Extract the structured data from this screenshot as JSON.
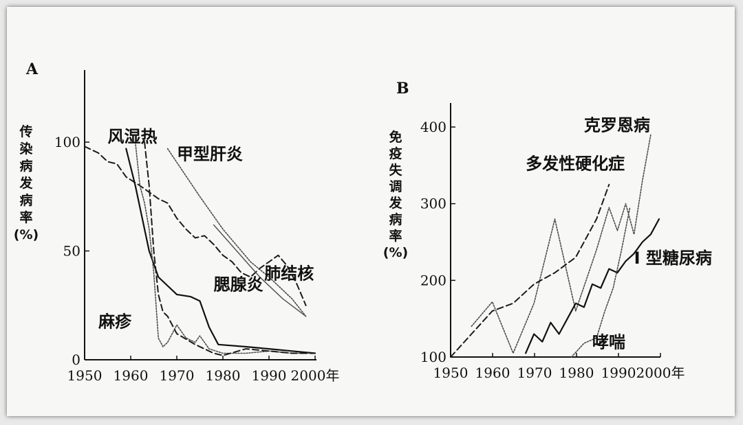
{
  "chart_data": [
    {
      "panel": "A",
      "type": "line",
      "ylabel": "传染病发病率(%)",
      "ylabel_chars": [
        "传",
        "染",
        "病",
        "发",
        "病",
        "率",
        "(%)"
      ],
      "xlim": [
        1950,
        2000
      ],
      "ylim": [
        0,
        100
      ],
      "xticks": [
        "1950",
        "1960",
        "1970",
        "1980",
        "1990",
        "2000年"
      ],
      "yticks": [
        "0",
        "50",
        "100"
      ],
      "series": [
        {
          "name": "风湿热",
          "style": "dashed",
          "x": [
            1950,
            1953,
            1955,
            1957,
            1959,
            1962,
            1964,
            1966,
            1968,
            1970,
            1972,
            1974,
            1976,
            1978,
            1980,
            1982,
            1984,
            1986,
            1988,
            1990,
            1992,
            1994,
            1996,
            1998
          ],
          "y": [
            98,
            95,
            91,
            90,
            84,
            80,
            77,
            74,
            72,
            65,
            60,
            56,
            57,
            53,
            48,
            45,
            40,
            38,
            42,
            45,
            48,
            43,
            35,
            25
          ]
        },
        {
          "name": "甲型肝炎",
          "style": "dotted",
          "x": [
            1968,
            1975,
            1980,
            1986,
            1990,
            1995,
            1998
          ],
          "y": [
            97,
            75,
            60,
            45,
            38,
            28,
            20
          ]
        },
        {
          "name": "肺结核",
          "style": "solid-thin",
          "x": [
            1978,
            1983,
            1988,
            1993,
            1998
          ],
          "y": [
            62,
            50,
            38,
            28,
            20
          ]
        },
        {
          "name": "腮腺炎",
          "style": "solid",
          "x": [
            1959,
            1961,
            1964,
            1966,
            1970,
            1973,
            1975,
            1977,
            1979,
            1985,
            1990,
            1995,
            2000
          ],
          "y": [
            97,
            80,
            50,
            38,
            30,
            29,
            27,
            15,
            7,
            6,
            5,
            4,
            3
          ]
        },
        {
          "name": "麻疹",
          "style": "dotted",
          "x": [
            1961,
            1962,
            1963,
            1964,
            1965,
            1966,
            1967,
            1968,
            1970,
            1972,
            1974,
            1975,
            1977,
            1980,
            1985,
            1990,
            1995,
            2000
          ],
          "y": [
            100,
            80,
            72,
            60,
            40,
            10,
            6,
            8,
            16,
            10,
            8,
            11,
            5,
            3,
            3,
            4,
            3,
            3
          ]
        },
        {
          "name": "",
          "style": "dashed",
          "x": [
            1963,
            1964,
            1965,
            1966,
            1967,
            1968,
            1970,
            1974,
            1978,
            1980,
            1985,
            1990,
            1995,
            2000
          ],
          "y": [
            100,
            80,
            50,
            30,
            22,
            20,
            12,
            7,
            3,
            2,
            5,
            4,
            3,
            3
          ]
        }
      ],
      "labels": [
        {
          "text": "风湿热",
          "x": 1955,
          "y": 100
        },
        {
          "text": "甲型肝炎",
          "x": 1970,
          "y": 92
        },
        {
          "text": "腮腺炎",
          "x": 1978,
          "y": 32
        },
        {
          "text": "肺结核",
          "x": 1989,
          "y": 37
        },
        {
          "text": "麻疹",
          "x": 1953,
          "y": 15
        }
      ]
    },
    {
      "panel": "B",
      "type": "line",
      "ylabel": "免疫失调发病率(%)",
      "ylabel_chars": [
        "免",
        "疫",
        "失",
        "调",
        "发",
        "病",
        "率",
        "(%)"
      ],
      "xlim": [
        1950,
        2000
      ],
      "ylim": [
        100,
        400
      ],
      "xticks": [
        "1950",
        "1960",
        "1970",
        "1980",
        "1990",
        "2000年"
      ],
      "yticks": [
        "100",
        "200",
        "300",
        "400"
      ],
      "series": [
        {
          "name": "克罗恩病",
          "style": "dotted",
          "x": [
            1955,
            1960,
            1965,
            1970,
            1975,
            1980,
            1985,
            1988,
            1990,
            1992,
            1994,
            1996,
            1998
          ],
          "y": [
            140,
            172,
            105,
            170,
            280,
            160,
            240,
            295,
            265,
            300,
            260,
            330,
            390
          ]
        },
        {
          "name": "多发性硬化症",
          "style": "dashed",
          "x": [
            1950,
            1955,
            1960,
            1965,
            1970,
            1975,
            1980,
            1985,
            1988
          ],
          "y": [
            100,
            130,
            160,
            170,
            195,
            210,
            230,
            280,
            325
          ]
        },
        {
          "name": "I 型糖尿病",
          "style": "solid",
          "x": [
            1968,
            1970,
            1972,
            1974,
            1976,
            1978,
            1980,
            1982,
            1984,
            1986,
            1988,
            1990,
            1992,
            1994,
            1996,
            1998,
            2000
          ],
          "y": [
            105,
            130,
            120,
            145,
            130,
            150,
            170,
            165,
            195,
            190,
            215,
            210,
            225,
            235,
            250,
            260,
            280
          ]
        },
        {
          "name": "哮喘",
          "style": "dotted",
          "x": [
            1979,
            1982,
            1985,
            1987,
            1989,
            1991,
            1993
          ],
          "y": [
            100,
            118,
            125,
            160,
            190,
            240,
            295
          ]
        }
      ],
      "labels": [
        {
          "text": "克罗恩病",
          "x": 1982,
          "y": 395
        },
        {
          "text": "多发性硬化症",
          "x": 1968,
          "y": 345
        },
        {
          "text": "I 型糖尿病",
          "x": 1994,
          "y": 222
        },
        {
          "text": "哮喘",
          "x": 1984,
          "y": 112
        }
      ]
    }
  ]
}
